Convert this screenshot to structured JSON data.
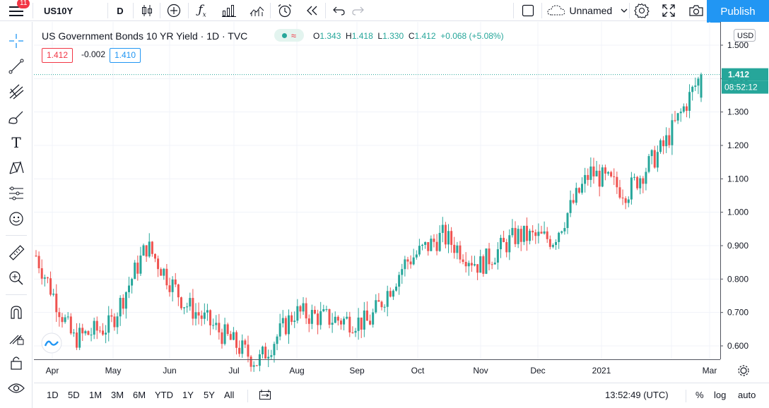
{
  "toolbar": {
    "notification_count": "11",
    "symbol": "US10Y",
    "interval": "D",
    "layout_name": "Unnamed",
    "publish_label": "Publish"
  },
  "legend": {
    "title": "US Government Bonds 10 YR Yield · 1D · TVC",
    "open_label": "O",
    "open": "1.343",
    "high_label": "H",
    "high": "1.418",
    "low_label": "L",
    "low": "1.330",
    "close_label": "C",
    "close": "1.412",
    "change": "+0.068 (+5.08%)",
    "bid": "1.412",
    "spread": "-0.002",
    "ask": "1.410"
  },
  "price_axis": {
    "currency": "USD",
    "last_price": "1.412",
    "countdown": "08:52:12",
    "ticks": [
      "1.500",
      "1.400",
      "1.300",
      "1.200",
      "1.100",
      "1.000",
      "0.900",
      "0.800",
      "0.700",
      "0.600"
    ]
  },
  "time_axis": {
    "labels": [
      "Apr",
      "May",
      "Jun",
      "Jul",
      "Aug",
      "Sep",
      "Oct",
      "Nov",
      "Dec",
      "2021",
      "Feb",
      "Mar"
    ]
  },
  "bottom": {
    "ranges": [
      "1D",
      "5D",
      "1M",
      "3M",
      "6M",
      "YTD",
      "1Y",
      "5Y",
      "All"
    ],
    "time": "13:52:49 (UTC)",
    "percent_label": "%",
    "log_label": "log",
    "auto_label": "auto"
  },
  "colors": {
    "up": "#26a69a",
    "down": "#ef5350",
    "accent": "#2196f3",
    "grid": "#f0f3fa"
  },
  "chart_data": {
    "type": "candlestick",
    "symbol": "US10Y",
    "title": "US Government Bonds 10 YR Yield · 1D · TVC",
    "ylim": [
      0.56,
      1.52
    ],
    "x_labels": [
      "Apr",
      "May",
      "Jun",
      "Jul",
      "Aug",
      "Sep",
      "Oct",
      "Nov",
      "Dec",
      "2021",
      "Feb",
      "Mar"
    ],
    "approx_close_path": [
      [
        "Mar 2020 end",
        0.87
      ],
      [
        "Apr 2020 mid",
        0.62
      ],
      [
        "May 2020 mid",
        0.66
      ],
      [
        "Jun 2020 start",
        0.9
      ],
      [
        "Jun 2020 mid",
        0.73
      ],
      [
        "Jul 2020 mid",
        0.64
      ],
      [
        "Aug 2020 start",
        0.55
      ],
      [
        "Aug 2020 mid",
        0.7
      ],
      [
        "Sep 2020 mid",
        0.68
      ],
      [
        "Oct 2020 start",
        0.67
      ],
      [
        "Oct 2020 end",
        0.85
      ],
      [
        "Nov 2020 mid",
        0.93
      ],
      [
        "Dec 2020 start",
        0.84
      ],
      [
        "Dec 2020 mid",
        0.93
      ],
      [
        "Dec 2020 end",
        0.92
      ],
      [
        "Jan 2021 start",
        1.12
      ],
      [
        "Jan 2021 end",
        1.06
      ],
      [
        "Feb 2021 mid",
        1.2
      ],
      [
        "Feb 2021 end",
        1.412
      ]
    ],
    "last": {
      "open": 1.343,
      "high": 1.418,
      "low": 1.33,
      "close": 1.412
    }
  }
}
